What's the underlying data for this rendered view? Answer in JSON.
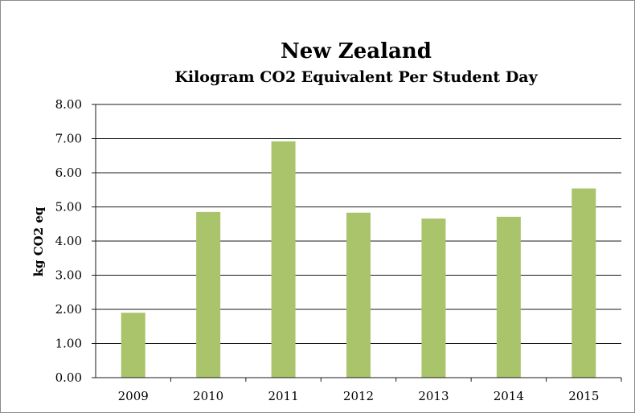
{
  "chart_data": {
    "type": "bar",
    "title": "New Zealand",
    "subtitle": "Kilogram CO2  Equivalent Per Student Day",
    "xlabel": "",
    "ylabel": "kg CO2 eq",
    "categories": [
      "2009",
      "2010",
      "2011",
      "2012",
      "2013",
      "2014",
      "2015"
    ],
    "values": [
      1.9,
      4.85,
      6.92,
      4.83,
      4.66,
      4.71,
      5.54
    ],
    "ylim": [
      0,
      8
    ],
    "yticks": [
      "0.00",
      "1.00",
      "2.00",
      "3.00",
      "4.00",
      "5.00",
      "6.00",
      "7.00",
      "8.00"
    ],
    "grid": true,
    "legend": "none",
    "bar_color": "#a9c46a"
  }
}
